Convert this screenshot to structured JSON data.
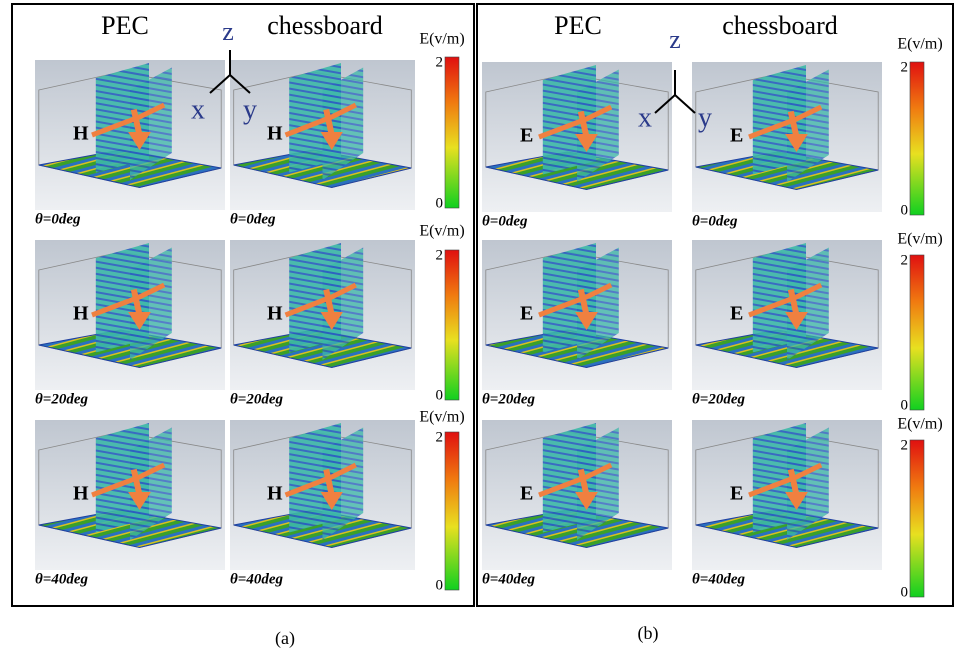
{
  "panels": [
    {
      "caption": "(a)",
      "columns": [
        "PEC",
        "chessboard"
      ],
      "axes": {
        "z": "z",
        "x": "x",
        "y": "y"
      },
      "rows": [
        {
          "cells": [
            {
              "field": "H",
              "angle": "θ=0deg"
            },
            {
              "field": "H",
              "angle": "θ=0deg"
            }
          ],
          "colorbar": {
            "title": "E(v/m)",
            "max": 2,
            "min": 0
          }
        },
        {
          "cells": [
            {
              "field": "H",
              "angle": "θ=20deg"
            },
            {
              "field": "H",
              "angle": "θ=20deg"
            }
          ],
          "colorbar": {
            "title": "E(v/m)",
            "max": 2,
            "min": 0
          }
        },
        {
          "cells": [
            {
              "field": "H",
              "angle": "θ=40deg"
            },
            {
              "field": "H",
              "angle": "θ=40deg"
            }
          ],
          "colorbar": {
            "title": "E(v/m)",
            "max": 2,
            "min": 0
          }
        }
      ]
    },
    {
      "caption": "(b)",
      "columns": [
        "PEC",
        "chessboard"
      ],
      "axes": {
        "z": "z",
        "x": "x",
        "y": "y"
      },
      "rows": [
        {
          "cells": [
            {
              "field": "E",
              "angle": "θ=0deg"
            },
            {
              "field": "E",
              "angle": "θ=0deg"
            }
          ],
          "colorbar": {
            "title": "E(v/m)",
            "max": 2,
            "min": 0
          }
        },
        {
          "cells": [
            {
              "field": "E",
              "angle": "θ=20deg"
            },
            {
              "field": "E",
              "angle": "θ=20deg"
            }
          ],
          "colorbar": {
            "title": "E(v/m)",
            "max": 2,
            "min": 0
          }
        },
        {
          "cells": [
            {
              "field": "E",
              "angle": "θ=40deg"
            },
            {
              "field": "E",
              "angle": "θ=40deg"
            }
          ],
          "colorbar": {
            "title": "E(v/m)",
            "max": 2,
            "min": 0
          }
        }
      ]
    }
  ]
}
